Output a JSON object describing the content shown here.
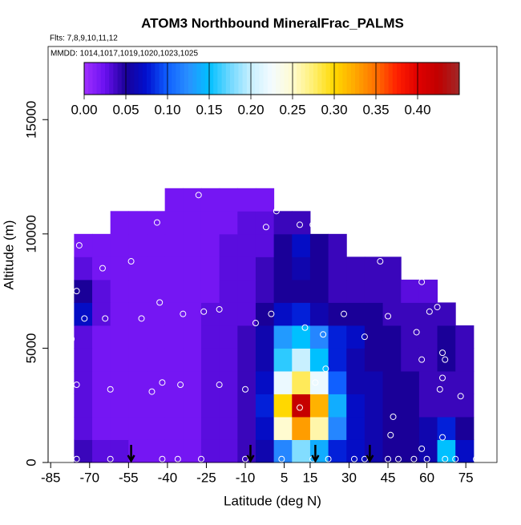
{
  "chart_data": {
    "type": "heatmap",
    "title": "ATOM3 Northbound MineralFrac_PALMS",
    "flights": "Flts: 7,8,9,10,11,12",
    "dates": "MMDD: 1014,1017,1019,1020,1023,1025",
    "x_label": "Latitude (deg N)",
    "y_label": "Altitude (m)",
    "xlim": [
      -86,
      87
    ],
    "ylim": [
      0,
      18200
    ],
    "xticks": [
      -85,
      -70,
      -55,
      -40,
      -25,
      -10,
      5,
      15,
      30,
      45,
      60,
      75
    ],
    "yticks": [
      0,
      5000,
      10000,
      15000
    ],
    "x_bins": [
      -76,
      -69,
      -62,
      -55,
      -48,
      -41,
      -34,
      -27,
      -20,
      -13,
      -6,
      1,
      8,
      15,
      22,
      29,
      36,
      43,
      50,
      57,
      64,
      71,
      78
    ],
    "y_bins": [
      0,
      1000,
      2000,
      3000,
      4000,
      5000,
      6000,
      7000,
      8000,
      9000,
      10000,
      11000,
      12000
    ],
    "z": [
      [
        0.04,
        0.03,
        0.03,
        0.02,
        0.02,
        0.02,
        0.02,
        0.03,
        0.03,
        0.04,
        0.06,
        0.12,
        0.18,
        0.14,
        0.08,
        0.07,
        0.06,
        0.05,
        0.05,
        0.06,
        0.15,
        0.07
      ],
      [
        0.03,
        0.02,
        0.02,
        0.02,
        0.02,
        0.02,
        0.02,
        0.03,
        0.03,
        0.04,
        0.07,
        0.25,
        0.33,
        0.26,
        0.12,
        0.07,
        0.06,
        0.05,
        0.05,
        0.06,
        0.08,
        0.05
      ],
      [
        0.03,
        0.02,
        0.02,
        0.02,
        0.02,
        0.02,
        0.02,
        0.03,
        0.03,
        0.04,
        0.08,
        0.3,
        0.42,
        0.32,
        0.14,
        0.07,
        0.06,
        0.05,
        0.05,
        0.04,
        0.04,
        0.04
      ],
      [
        0.03,
        0.02,
        0.02,
        0.02,
        0.02,
        0.02,
        0.02,
        0.03,
        0.03,
        0.04,
        0.07,
        0.22,
        0.28,
        0.22,
        0.1,
        0.06,
        0.06,
        0.05,
        0.05,
        0.04,
        0.04,
        0.04
      ],
      [
        0.03,
        0.02,
        0.02,
        0.02,
        0.02,
        0.02,
        0.02,
        0.03,
        0.03,
        0.04,
        0.06,
        0.16,
        0.2,
        0.15,
        0.08,
        0.06,
        0.05,
        0.05,
        0.04,
        0.04,
        0.05,
        0.04
      ],
      [
        0.03,
        0.02,
        0.02,
        0.02,
        0.02,
        0.02,
        0.02,
        0.03,
        0.03,
        0.04,
        0.06,
        0.13,
        0.15,
        0.12,
        0.08,
        0.07,
        0.05,
        0.05,
        0.04,
        0.04,
        0.05,
        0.04
      ],
      [
        0.07,
        0.03,
        0.02,
        0.02,
        0.02,
        0.02,
        0.02,
        0.03,
        0.03,
        0.03,
        0.05,
        0.07,
        0.08,
        0.06,
        0.05,
        0.05,
        0.05,
        0.04,
        0.04,
        0.04,
        0.04,
        null
      ],
      [
        0.05,
        0.03,
        0.02,
        0.02,
        0.02,
        0.02,
        0.02,
        0.02,
        0.03,
        0.03,
        0.04,
        0.05,
        0.05,
        0.05,
        0.04,
        0.04,
        0.04,
        0.04,
        0.03,
        0.03,
        null,
        null
      ],
      [
        0.03,
        0.02,
        0.02,
        0.02,
        0.02,
        0.02,
        0.02,
        0.02,
        0.03,
        0.03,
        0.04,
        0.05,
        0.06,
        0.05,
        0.04,
        0.04,
        0.04,
        0.04,
        null,
        null,
        null,
        null
      ],
      [
        0.02,
        0.02,
        0.02,
        0.02,
        0.02,
        0.02,
        0.02,
        0.02,
        0.03,
        0.03,
        0.03,
        0.05,
        0.07,
        0.05,
        0.04,
        null,
        null,
        null,
        null,
        null,
        null,
        null
      ],
      [
        null,
        null,
        0.02,
        0.02,
        0.02,
        0.02,
        0.02,
        0.02,
        0.02,
        0.03,
        0.03,
        0.04,
        0.04,
        null,
        null,
        null,
        null,
        null,
        null,
        null,
        null,
        null
      ],
      [
        null,
        null,
        null,
        null,
        null,
        0.02,
        0.02,
        0.02,
        0.02,
        0.02,
        0.02,
        null,
        null,
        null,
        null,
        null,
        null,
        null,
        null,
        null,
        null,
        null
      ]
    ],
    "samples": {
      "x": [
        -77,
        -75,
        -74,
        -72,
        -75,
        -66,
        -65,
        -64,
        -62,
        -54,
        -50,
        -44,
        -43,
        -42,
        -46,
        -35,
        -34,
        -28,
        -26,
        -20,
        -20,
        -10,
        -6,
        -2,
        0,
        2,
        11,
        13,
        11,
        16,
        17,
        20,
        21,
        28,
        36,
        42,
        45,
        47,
        46,
        56,
        58,
        58,
        61,
        64,
        65,
        66,
        67,
        66,
        73,
        58,
        66,
        75,
        -75,
        -62,
        -42,
        -36,
        -27,
        -10,
        4,
        16,
        22,
        32,
        36,
        45,
        49,
        55,
        60,
        67,
        71,
        79
      ],
      "y": [
        5400,
        7500,
        9500,
        6300,
        3400,
        10500,
        8500,
        6300,
        3200,
        8800,
        6300,
        10500,
        7000,
        3500,
        3100,
        3400,
        6500,
        11700,
        6600,
        6700,
        3400,
        3200,
        6100,
        10300,
        6500,
        11000,
        10400,
        5900,
        2400,
        10400,
        3500,
        5600,
        4100,
        6500,
        5500,
        8800,
        6400,
        2000,
        1200,
        5700,
        4500,
        7900,
        6600,
        6800,
        3200,
        3700,
        4500,
        4800,
        2900,
        600,
        1100,
        6600,
        150,
        150,
        150,
        150,
        150,
        150,
        150,
        150,
        150,
        150,
        150,
        150,
        150,
        150,
        150,
        150,
        150,
        150
      ]
    },
    "arrows_x": [
      -54,
      -8,
      17,
      38
    ],
    "colorscale": [
      [
        0,
        "#a030ff"
      ],
      [
        0.025,
        "#6a10f0"
      ],
      [
        0.05,
        "#1a0098"
      ],
      [
        0.075,
        "#0010d0"
      ],
      [
        0.1,
        "#1060ff"
      ],
      [
        0.125,
        "#2a90ff"
      ],
      [
        0.15,
        "#00c0ff"
      ],
      [
        0.175,
        "#70d8ff"
      ],
      [
        0.2,
        "#c8f0ff"
      ],
      [
        0.225,
        "#f4fbff"
      ],
      [
        0.25,
        "#fffbd0"
      ],
      [
        0.275,
        "#ffef70"
      ],
      [
        0.3,
        "#ffd800"
      ],
      [
        0.325,
        "#ffa800"
      ],
      [
        0.35,
        "#ff7000"
      ],
      [
        0.375,
        "#ff2000"
      ],
      [
        0.4,
        "#e00000"
      ],
      [
        0.425,
        "#c00000"
      ],
      [
        0.45,
        "#a02828"
      ]
    ],
    "colorbar_lim": [
      0,
      0.45
    ],
    "colorbar_ticks": [
      {
        "value": 0,
        "label": "0.00"
      },
      {
        "value": 0.05,
        "label": "0.05"
      },
      {
        "value": 0.1,
        "label": "0.10"
      },
      {
        "value": 0.15,
        "label": "0.15"
      },
      {
        "value": 0.2,
        "label": "0.20"
      },
      {
        "value": 0.25,
        "label": "0.25"
      },
      {
        "value": 0.3,
        "label": "0.30"
      },
      {
        "value": 0.35,
        "label": "0.35"
      },
      {
        "value": 0.4,
        "label": "0.40"
      }
    ]
  }
}
